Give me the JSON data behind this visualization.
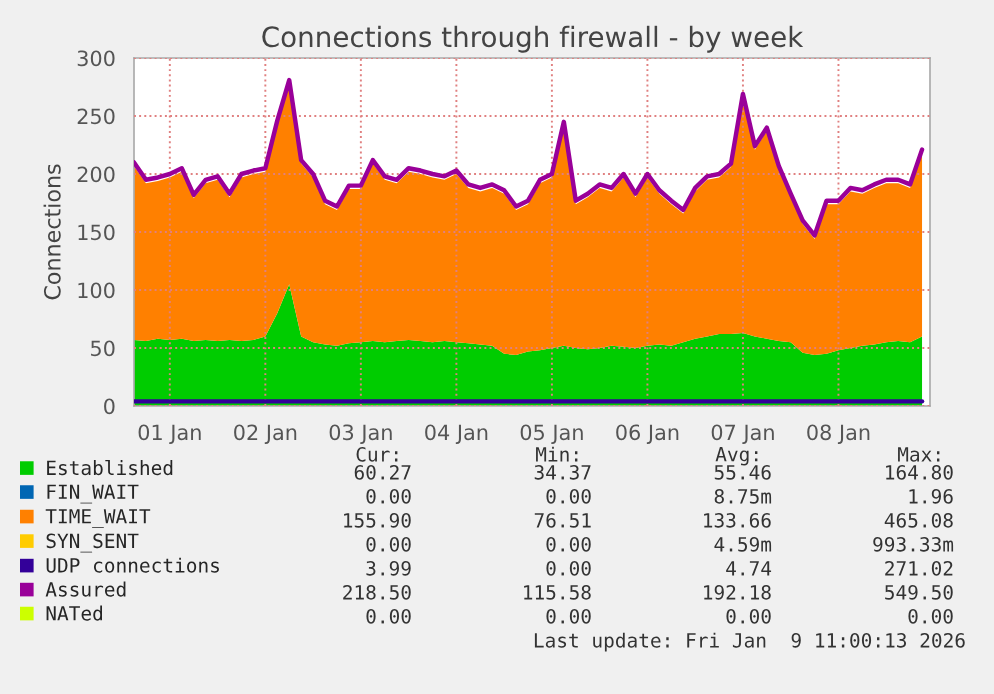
{
  "chart_data": {
    "type": "area",
    "title": "Connections through firewall - by week",
    "ylabel": "Connections",
    "stacked": true,
    "x": [
      "2026-01-01T03:00",
      "2026-01-01T06:00",
      "2026-01-01T09:00",
      "2026-01-01T12:00",
      "2026-01-01T15:00",
      "2026-01-01T18:00",
      "2026-01-01T21:00",
      "2026-01-02T00:00",
      "2026-01-02T03:00",
      "2026-01-02T06:00",
      "2026-01-02T09:00",
      "2026-01-02T12:00",
      "2026-01-02T15:00",
      "2026-01-02T18:00",
      "2026-01-02T21:00",
      "2026-01-03T00:00",
      "2026-01-03T03:00",
      "2026-01-03T06:00",
      "2026-01-03T09:00",
      "2026-01-03T12:00",
      "2026-01-03T15:00",
      "2026-01-03T18:00",
      "2026-01-03T21:00",
      "2026-01-04T00:00",
      "2026-01-04T03:00",
      "2026-01-04T06:00",
      "2026-01-04T09:00",
      "2026-01-04T12:00",
      "2026-01-04T15:00",
      "2026-01-04T18:00",
      "2026-01-04T21:00",
      "2026-01-05T00:00",
      "2026-01-05T03:00",
      "2026-01-05T06:00",
      "2026-01-05T09:00",
      "2026-01-05T12:00",
      "2026-01-05T15:00",
      "2026-01-05T18:00",
      "2026-01-05T21:00",
      "2026-01-06T00:00",
      "2026-01-06T03:00",
      "2026-01-06T06:00",
      "2026-01-06T09:00",
      "2026-01-06T12:00",
      "2026-01-06T15:00",
      "2026-01-06T18:00",
      "2026-01-06T21:00",
      "2026-01-07T00:00",
      "2026-01-07T03:00",
      "2026-01-07T06:00",
      "2026-01-07T09:00",
      "2026-01-07T12:00",
      "2026-01-07T15:00",
      "2026-01-07T18:00",
      "2026-01-07T21:00",
      "2026-01-08T00:00",
      "2026-01-08T03:00",
      "2026-01-08T06:00",
      "2026-01-08T09:00",
      "2026-01-08T12:00",
      "2026-01-08T15:00",
      "2026-01-08T18:00",
      "2026-01-08T21:00",
      "2026-01-09T00:00",
      "2026-01-09T03:00",
      "2026-01-09T06:00",
      "2026-01-09T09:00"
    ],
    "series": [
      {
        "name": "Established",
        "color": "#00cc00",
        "values": [
          57,
          56,
          58,
          57,
          58,
          56,
          57,
          56,
          57,
          56,
          57,
          60,
          80,
          105,
          60,
          55,
          53,
          52,
          54,
          55,
          56,
          55,
          56,
          57,
          56,
          55,
          56,
          55,
          54,
          53,
          52,
          45,
          44,
          47,
          48,
          50,
          52,
          50,
          49,
          50,
          52,
          51,
          50,
          52,
          53,
          52,
          55,
          58,
          60,
          62,
          62,
          63,
          60,
          58,
          56,
          55,
          46,
          44,
          45,
          48,
          50,
          52,
          53,
          55,
          56,
          55,
          60
        ]
      },
      {
        "name": "FIN_WAIT",
        "type": "line",
        "color": "#0066b3",
        "values": [
          null,
          null,
          null,
          null,
          null,
          null,
          null,
          null,
          null,
          null,
          null,
          null,
          null,
          null,
          null,
          null,
          null,
          null,
          null,
          null,
          null,
          null,
          null,
          null,
          null,
          null,
          null,
          null,
          null,
          null,
          null,
          null,
          null,
          null,
          null,
          null,
          null,
          null,
          null,
          null,
          null,
          null,
          null,
          null,
          null,
          null,
          null,
          null,
          null,
          null,
          null,
          null,
          null,
          null,
          null,
          null,
          null,
          null,
          null,
          null,
          null,
          null,
          null,
          null,
          null,
          null,
          null
        ]
      },
      {
        "name": "TIME_WAIT",
        "color": "#ff8000",
        "values": [
          150,
          136,
          136,
          140,
          144,
          123,
          135,
          139,
          123,
          141,
          143,
          142,
          163,
          173,
          149,
          142,
          121,
          117,
          133,
          132,
          153,
          140,
          136,
          145,
          144,
          142,
          139,
          145,
          134,
          132,
          136,
          138,
          125,
          127,
          144,
          147,
          190,
          124,
          131,
          138,
          133,
          146,
          130,
          145,
          130,
          122,
          111,
          127,
          135,
          135,
          144,
          203,
          161,
          179,
          148,
          125,
          111,
          100,
          129,
          126,
          135,
          131,
          135,
          137,
          136,
          133,
          158
        ]
      },
      {
        "name": "SYN_SENT",
        "type": "line",
        "color": "#ffcc00",
        "values": [
          null,
          null,
          null,
          null,
          null,
          null,
          null,
          null,
          null,
          null,
          null,
          null,
          null,
          null,
          null,
          null,
          null,
          null,
          null,
          null,
          null,
          null,
          null,
          null,
          null,
          null,
          null,
          null,
          null,
          null,
          null,
          null,
          null,
          null,
          null,
          null,
          null,
          null,
          null,
          null,
          null,
          null,
          null,
          null,
          null,
          null,
          null,
          null,
          null,
          null,
          null,
          null,
          null,
          null,
          null,
          null,
          null,
          null,
          null,
          null,
          null,
          null,
          null,
          null,
          null,
          null,
          null
        ]
      },
      {
        "name": "UDP connections",
        "type": "line",
        "color": "#330099",
        "x": [
          "2026-01-01T03:00",
          "2026-01-09T09:00"
        ],
        "values": [
          4,
          4
        ]
      },
      {
        "name": "Assured",
        "type": "line",
        "color": "#990099",
        "values": [
          210,
          195,
          197,
          200,
          205,
          182,
          195,
          198,
          183,
          200,
          203,
          205,
          246,
          281,
          212,
          200,
          177,
          172,
          190,
          190,
          212,
          198,
          195,
          205,
          203,
          200,
          198,
          203,
          191,
          188,
          191,
          186,
          172,
          177,
          195,
          200,
          245,
          177,
          183,
          191,
          188,
          200,
          183,
          200,
          186,
          177,
          169,
          188,
          198,
          200,
          209,
          269,
          224,
          240,
          207,
          183,
          160,
          147,
          177,
          177,
          188,
          186,
          191,
          195,
          195,
          191,
          221
        ]
      },
      {
        "name": "NATed",
        "type": "line",
        "color": "#ccff00",
        "values": [
          null,
          null,
          null,
          null,
          null,
          null,
          null,
          null,
          null,
          null,
          null,
          null,
          null,
          null,
          null,
          null,
          null,
          null,
          null,
          null,
          null,
          null,
          null,
          null,
          null,
          null,
          null,
          null,
          null,
          null,
          null,
          null,
          null,
          null,
          null,
          null,
          null,
          null,
          null,
          null,
          null,
          null,
          null,
          null,
          null,
          null,
          null,
          null,
          null,
          null,
          null,
          null,
          null,
          null,
          null,
          null,
          null,
          null,
          null,
          null,
          null,
          null,
          null,
          null,
          null,
          null,
          null
        ]
      }
    ],
    "xlim": [
      "2026-01-01T03:00",
      "2026-01-09T11:00"
    ],
    "xticks": [
      {
        "value": "2026-01-01T12:00",
        "label": "01 Jan"
      },
      {
        "value": "2026-01-02T12:00",
        "label": "02 Jan"
      },
      {
        "value": "2026-01-03T12:00",
        "label": "03 Jan"
      },
      {
        "value": "2026-01-04T12:00",
        "label": "04 Jan"
      },
      {
        "value": "2026-01-05T12:00",
        "label": "05 Jan"
      },
      {
        "value": "2026-01-06T12:00",
        "label": "06 Jan"
      },
      {
        "value": "2026-01-07T12:00",
        "label": "07 Jan"
      },
      {
        "value": "2026-01-08T12:00",
        "label": "08 Jan"
      }
    ],
    "ylim": [
      0,
      300
    ],
    "yticks": [
      0,
      50,
      100,
      150,
      200,
      250,
      300
    ],
    "grid": true,
    "legend": "bottom",
    "annotations": [
      "Cur:",
      "Min:",
      "Avg:",
      "Max:",
      "60.27",
      "34.37",
      "55.46",
      "164.80",
      "0.00",
      "0.00",
      "8.75m",
      "1.96",
      "155.90",
      "76.51",
      "133.66",
      "465.08",
      "0.00",
      "0.00",
      "4.59m",
      "993.33m",
      "3.99",
      "0.00",
      "4.74",
      "271.02",
      "218.50",
      "115.58",
      "192.18",
      "549.50",
      "0.00",
      "0.00",
      "0.00",
      "0.00",
      "Last update: Fri Jan  9 11:00:13 2026"
    ]
  }
}
